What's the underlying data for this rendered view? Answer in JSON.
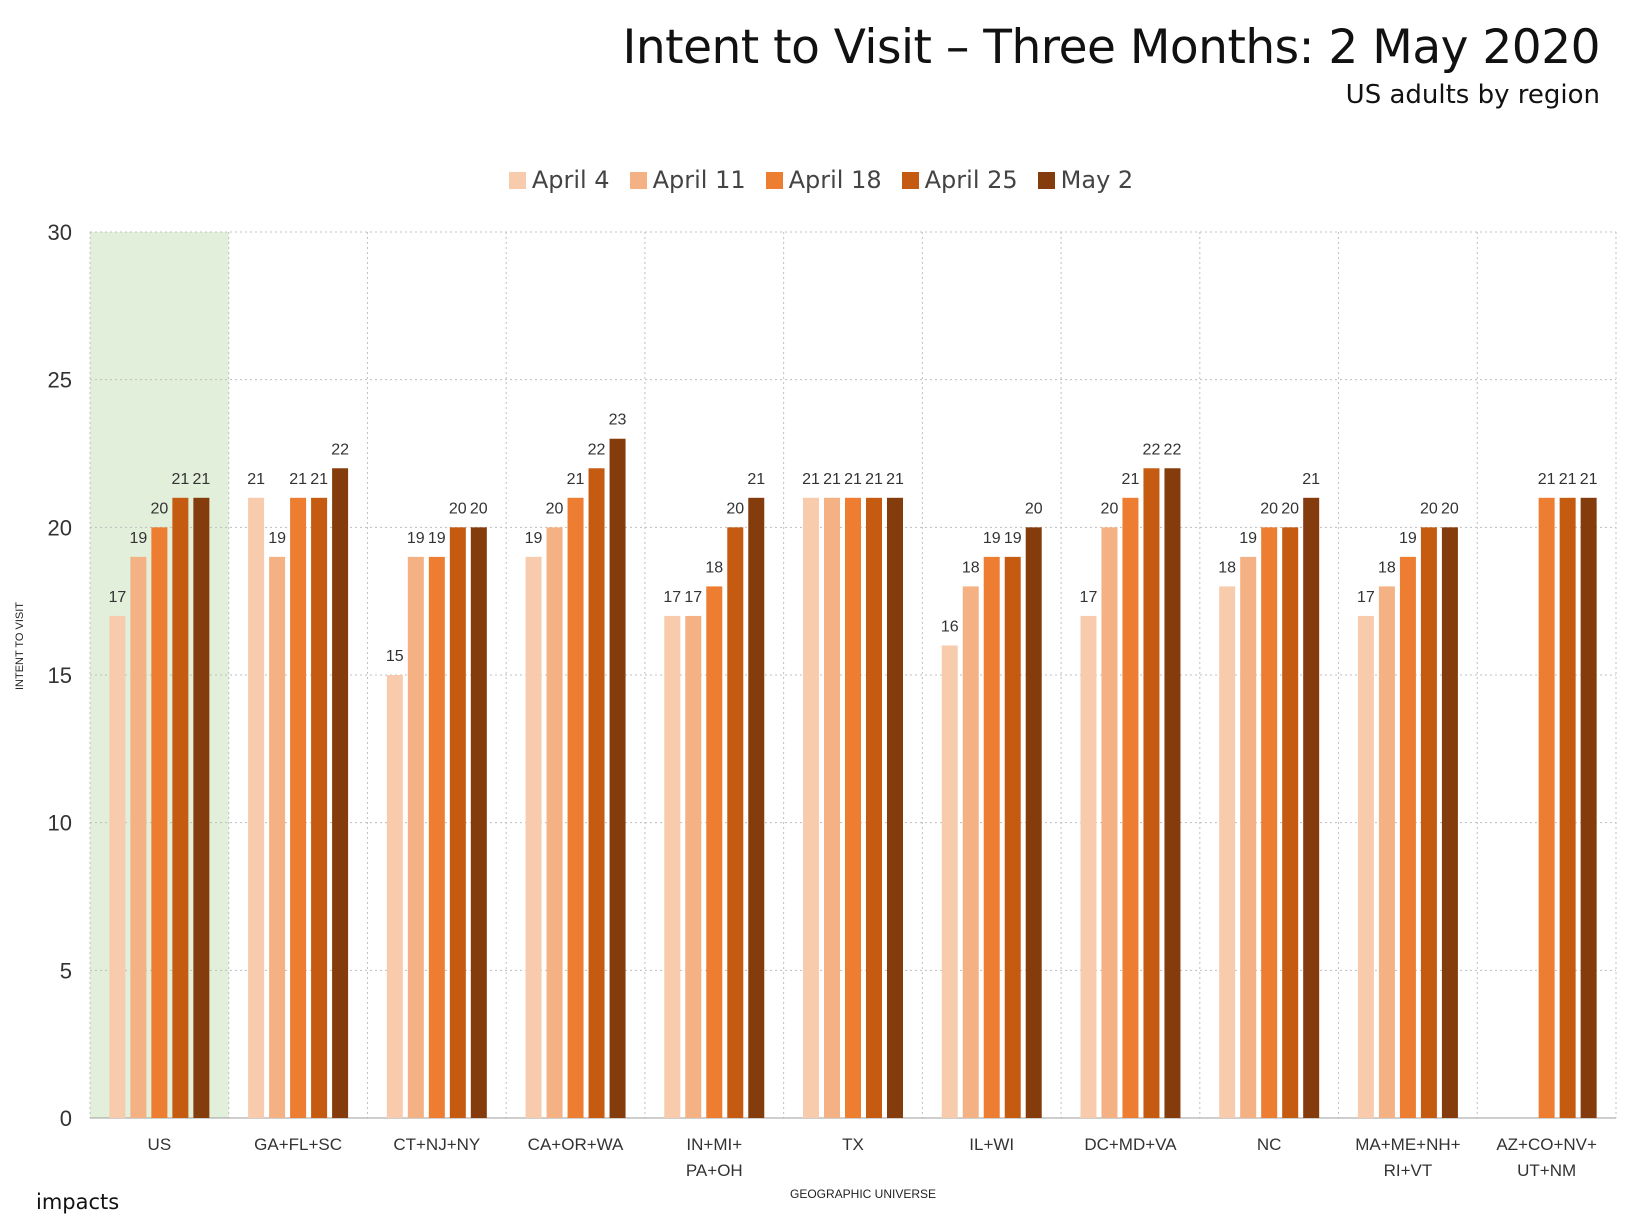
{
  "chart_data": {
    "type": "bar",
    "title": "Intent to Visit – Three Months: 2 May 2020",
    "subtitle": "US adults by region",
    "xlabel": "GEOGRAPHIC UNIVERSE",
    "ylabel": "INTENT TO VISIT",
    "ylim": [
      0,
      30
    ],
    "yticks": [
      "0",
      "5",
      "10",
      "15",
      "20",
      "25",
      "30"
    ],
    "grid": true,
    "legend_position": "top",
    "highlight_category": "US",
    "highlight_color": "#e2efda",
    "categories": [
      [
        "US"
      ],
      [
        "GA+FL+SC"
      ],
      [
        "CT+NJ+NY"
      ],
      [
        "CA+OR+WA"
      ],
      [
        "IN+MI+",
        "PA+OH"
      ],
      [
        "TX"
      ],
      [
        "IL+WI"
      ],
      [
        "DC+MD+VA"
      ],
      [
        "NC"
      ],
      [
        "MA+ME+NH+",
        "RI+VT"
      ],
      [
        "AZ+CO+NV+",
        "UT+NM"
      ]
    ],
    "series": [
      {
        "name": "April 4",
        "color": "#f8cbad",
        "values": [
          17,
          21,
          15,
          19,
          17,
          21,
          16,
          17,
          18,
          17,
          null
        ]
      },
      {
        "name": "April 11",
        "color": "#f4b183",
        "values": [
          19,
          19,
          19,
          20,
          17,
          21,
          18,
          20,
          19,
          18,
          null
        ]
      },
      {
        "name": "April 18",
        "color": "#ed7d31",
        "values": [
          20,
          21,
          19,
          21,
          18,
          21,
          19,
          21,
          20,
          19,
          21
        ]
      },
      {
        "name": "April 25",
        "color": "#c55a11",
        "values": [
          21,
          21,
          20,
          22,
          20,
          21,
          19,
          22,
          20,
          20,
          21
        ]
      },
      {
        "name": "May 2",
        "color": "#843c0c",
        "values": [
          21,
          22,
          20,
          23,
          21,
          21,
          20,
          22,
          21,
          20,
          21
        ]
      }
    ]
  },
  "brand": {
    "name": "impacts"
  }
}
